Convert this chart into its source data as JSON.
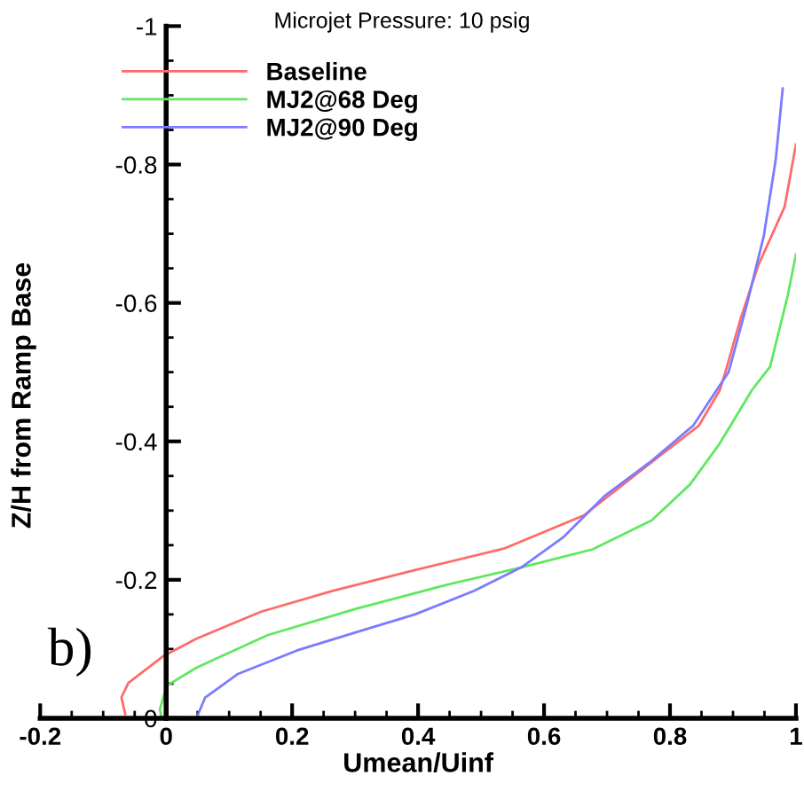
{
  "chart_data": {
    "type": "line",
    "title": "Microjet Pressure: 10 psig",
    "xlabel": "Umean/Uinf",
    "ylabel": "Z/H from Ramp Base",
    "annotations": [
      "b)"
    ],
    "xlim": [
      -0.2,
      1
    ],
    "xticks": [
      -0.2,
      0,
      0.2,
      0.4,
      0.6,
      0.8,
      1
    ],
    "ylim": [
      0,
      -1
    ],
    "yticks": [
      0,
      -0.2,
      -0.4,
      -0.6,
      -0.8,
      -1
    ],
    "grid": false,
    "legend": "top left",
    "marker": "none",
    "line_style": "solid",
    "series": [
      {
        "name": "Baseline",
        "color": "#ff6b6b",
        "x": [
          -0.065,
          -0.071,
          -0.06,
          -0.004,
          0.048,
          0.151,
          0.264,
          0.395,
          0.536,
          0.663,
          0.761,
          0.846,
          0.879,
          0.888,
          0.912,
          0.94,
          0.982,
          1.0
        ],
        "values": [
          -0.006,
          -0.03,
          -0.051,
          -0.09,
          -0.115,
          -0.154,
          -0.184,
          -0.214,
          -0.245,
          -0.293,
          -0.363,
          -0.423,
          -0.474,
          -0.5,
          -0.577,
          -0.654,
          -0.739,
          -0.829
        ]
      },
      {
        "name": "MJ2@68 Deg",
        "color": "#5fe85f",
        "x": [
          -0.008,
          -0.01,
          0.001,
          0.048,
          0.161,
          0.301,
          0.442,
          0.564,
          0.677,
          0.771,
          0.832,
          0.879,
          0.93,
          0.959,
          0.987,
          1.0
        ],
        "values": [
          -0.004,
          -0.013,
          -0.047,
          -0.073,
          -0.12,
          -0.158,
          -0.192,
          -0.218,
          -0.244,
          -0.286,
          -0.338,
          -0.397,
          -0.474,
          -0.508,
          -0.611,
          -0.67
        ]
      },
      {
        "name": "MJ2@90 Deg",
        "color": "#7b7bff",
        "x": [
          0.048,
          0.062,
          0.114,
          0.208,
          0.301,
          0.395,
          0.489,
          0.564,
          0.63,
          0.696,
          0.771,
          0.837,
          0.874,
          0.893,
          0.921,
          0.949,
          0.968,
          0.979
        ],
        "values": [
          0,
          -0.03,
          -0.064,
          -0.098,
          -0.124,
          -0.15,
          -0.184,
          -0.218,
          -0.261,
          -0.321,
          -0.372,
          -0.423,
          -0.474,
          -0.5,
          -0.594,
          -0.697,
          -0.808,
          -0.91
        ]
      }
    ]
  }
}
